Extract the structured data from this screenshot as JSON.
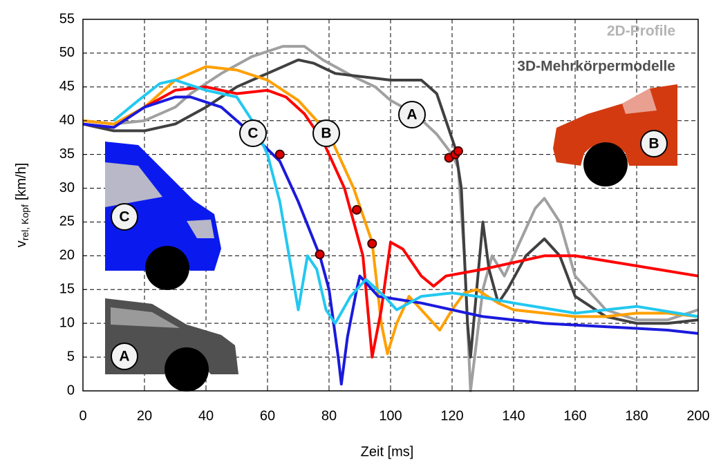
{
  "chart_data": {
    "type": "line",
    "xlabel": "Zeit [ms]",
    "ylabel": {
      "main": "v",
      "sub": "rel, Kopf",
      "unit": "[km/h]"
    },
    "xlim": [
      0,
      200
    ],
    "ylim": [
      0,
      55
    ],
    "xticks": [
      0,
      20,
      40,
      60,
      80,
      100,
      120,
      140,
      160,
      180,
      200
    ],
    "yticks": [
      0,
      5,
      10,
      15,
      20,
      25,
      30,
      35,
      40,
      45,
      50,
      55
    ],
    "grid": true,
    "legend": [
      {
        "label": "2D-Profile",
        "color": "#b4b4b4"
      },
      {
        "label": "3D-Mehrkörpermodelle",
        "color": "#505050"
      }
    ],
    "series": [
      {
        "color": "#a0a0a0",
        "x": [
          0,
          10,
          20,
          30,
          35,
          45,
          55,
          65,
          72,
          78,
          88,
          95,
          100,
          108,
          115,
          120,
          122,
          124,
          126,
          130,
          133,
          137,
          142,
          147,
          150,
          155,
          160,
          170,
          180,
          190,
          200
        ],
        "values": [
          40,
          39.5,
          40,
          42,
          44,
          47,
          49.5,
          51,
          51,
          49,
          46.5,
          45,
          43,
          41,
          38,
          35,
          33,
          20,
          0,
          15,
          20,
          17,
          22,
          27,
          28.5,
          25,
          17,
          12,
          10.5,
          10.5,
          12
        ]
      },
      {
        "color": "#404040",
        "x": [
          0,
          10,
          20,
          30,
          40,
          50,
          60,
          70,
          75,
          82,
          100,
          110,
          115,
          118,
          121,
          123,
          125,
          126,
          128,
          130,
          132,
          135,
          138,
          144,
          150,
          155,
          160,
          170,
          180,
          190,
          200
        ],
        "values": [
          39.5,
          38.5,
          38.5,
          39.5,
          42,
          45,
          47,
          49,
          48.5,
          47,
          46,
          46,
          44,
          40,
          36,
          30,
          10,
          5,
          15,
          25,
          18,
          13,
          15,
          20,
          22.5,
          20,
          14,
          11,
          10,
          10,
          10.5
        ]
      },
      {
        "color": "#ffa000",
        "x": [
          0,
          10,
          20,
          30,
          40,
          50,
          60,
          70,
          80,
          88,
          94,
          97,
          99,
          102,
          106,
          110,
          116,
          120,
          124,
          128,
          135,
          140,
          150,
          160,
          170,
          180,
          190,
          200
        ],
        "values": [
          40,
          39.5,
          42,
          46,
          48,
          47.5,
          46,
          43,
          38,
          30,
          22,
          10,
          5.5,
          10,
          14,
          12,
          9,
          12,
          14.5,
          15,
          13,
          12,
          11.5,
          11,
          11,
          11.5,
          11.5,
          11
        ]
      },
      {
        "color": "#ff0000",
        "x": [
          0,
          10,
          20,
          30,
          40,
          50,
          60,
          66,
          72,
          78,
          85,
          91,
          94,
          97,
          100,
          104,
          110,
          114,
          118,
          130,
          150,
          160,
          180,
          200
        ],
        "values": [
          39.5,
          39,
          42,
          44.5,
          45,
          44,
          44.5,
          43.5,
          41,
          37,
          30,
          20,
          5,
          12,
          22,
          21,
          17,
          15.5,
          17,
          18,
          20,
          20,
          18.5,
          17
        ]
      },
      {
        "color": "#1a1adc",
        "x": [
          0,
          10,
          20,
          30,
          35,
          45,
          55,
          64,
          70,
          77,
          80,
          83,
          84,
          86,
          89,
          90,
          96,
          110,
          130,
          150,
          170,
          190,
          200
        ],
        "values": [
          39.5,
          39,
          42,
          43.5,
          43.5,
          42,
          38,
          34,
          28,
          20,
          15,
          5,
          1,
          8,
          15,
          17,
          14,
          13,
          11,
          10,
          9.5,
          9,
          8.5
        ]
      },
      {
        "color": "#22c8f0",
        "x": [
          10,
          18,
          25,
          30,
          40,
          50,
          55,
          60,
          64,
          67,
          70,
          73,
          76,
          79,
          82,
          87,
          92,
          98,
          102,
          110,
          120,
          128,
          140,
          160,
          180,
          200
        ],
        "values": [
          40,
          43,
          45.5,
          46,
          44.5,
          43.5,
          40,
          35,
          28,
          20,
          12,
          20,
          18,
          12,
          10,
          14,
          16.5,
          14,
          12,
          14,
          14.5,
          14,
          13,
          11.5,
          12.5,
          11
        ]
      }
    ],
    "points": {
      "x": [
        64,
        77,
        89,
        94,
        119,
        121,
        122
      ],
      "y": [
        35,
        20.2,
        26.8,
        21.8,
        34.5,
        35,
        35.5
      ]
    },
    "curve_labels": [
      "C",
      "B",
      "A"
    ],
    "car_labels": [
      "B",
      "C",
      "A"
    ]
  }
}
